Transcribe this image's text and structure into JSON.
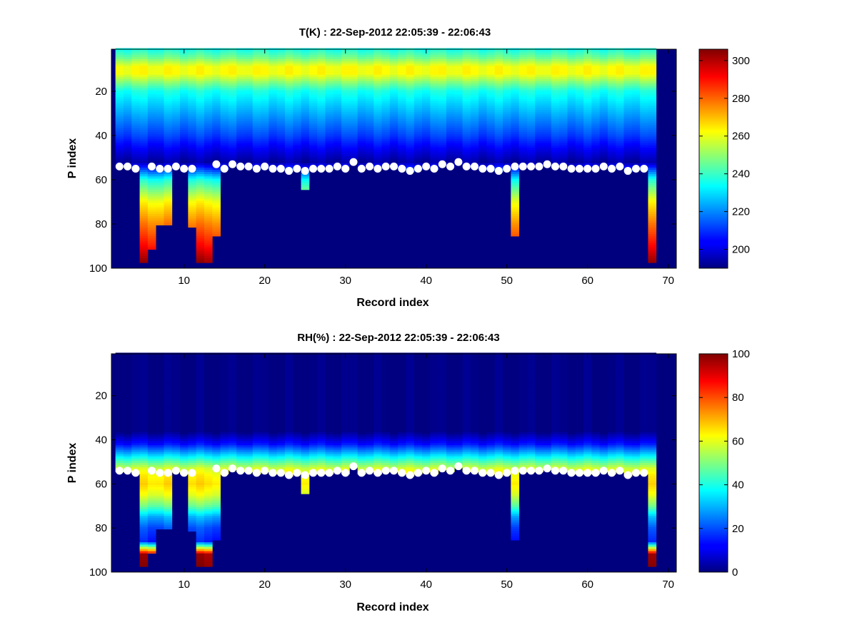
{
  "chart_data": [
    {
      "type": "heatmap",
      "title": "T(K) : 22-Sep-2012 22:05:39 - 22:06:43",
      "xlabel": "Record index",
      "ylabel": "P index",
      "xlim": [
        1,
        71
      ],
      "ylim": [
        1,
        100
      ],
      "y_reversed": true,
      "xticks": [
        10,
        20,
        30,
        40,
        50,
        60,
        70
      ],
      "yticks": [
        20,
        40,
        60,
        80,
        100
      ],
      "colorbar": {
        "min": 190,
        "max": 306,
        "ticks": [
          200,
          220,
          240,
          260,
          280,
          300
        ],
        "colormap": "jet"
      },
      "fill_color": "#00007f",
      "n_records": 67,
      "n_levels": 100,
      "profile": {
        "levels": [
          1,
          5,
          9,
          12,
          20,
          30,
          40,
          48,
          52,
          60,
          70,
          80,
          90,
          97
        ],
        "values": [
          236,
          247,
          262,
          262,
          236,
          224,
          212,
          200,
          194,
          236,
          262,
          277,
          290,
          302
        ]
      },
      "records": [
        {
          "x": 2,
          "bottom": 54
        },
        {
          "x": 3,
          "bottom": 54
        },
        {
          "x": 4,
          "bottom": 55
        },
        {
          "x": 5,
          "bottom": 97
        },
        {
          "x": 6,
          "bottom": 91
        },
        {
          "x": 7,
          "bottom": 80
        },
        {
          "x": 8,
          "bottom": 80
        },
        {
          "x": 9,
          "bottom": 54
        },
        {
          "x": 10,
          "bottom": 55
        },
        {
          "x": 11,
          "bottom": 81
        },
        {
          "x": 12,
          "bottom": 97
        },
        {
          "x": 13,
          "bottom": 97
        },
        {
          "x": 14,
          "bottom": 85
        },
        {
          "x": 15,
          "bottom": 55
        },
        {
          "x": 16,
          "bottom": 53
        },
        {
          "x": 17,
          "bottom": 54
        },
        {
          "x": 18,
          "bottom": 54
        },
        {
          "x": 19,
          "bottom": 55
        },
        {
          "x": 20,
          "bottom": 54
        },
        {
          "x": 21,
          "bottom": 55
        },
        {
          "x": 22,
          "bottom": 55
        },
        {
          "x": 23,
          "bottom": 56
        },
        {
          "x": 24,
          "bottom": 55
        },
        {
          "x": 25,
          "bottom": 64
        },
        {
          "x": 26,
          "bottom": 55
        },
        {
          "x": 27,
          "bottom": 55
        },
        {
          "x": 28,
          "bottom": 55
        },
        {
          "x": 29,
          "bottom": 54
        },
        {
          "x": 30,
          "bottom": 55
        },
        {
          "x": 31,
          "bottom": 52
        },
        {
          "x": 32,
          "bottom": 55
        },
        {
          "x": 33,
          "bottom": 54
        },
        {
          "x": 34,
          "bottom": 55
        },
        {
          "x": 35,
          "bottom": 54
        },
        {
          "x": 36,
          "bottom": 54
        },
        {
          "x": 37,
          "bottom": 55
        },
        {
          "x": 38,
          "bottom": 56
        },
        {
          "x": 39,
          "bottom": 55
        },
        {
          "x": 40,
          "bottom": 54
        },
        {
          "x": 41,
          "bottom": 55
        },
        {
          "x": 42,
          "bottom": 53
        },
        {
          "x": 43,
          "bottom": 54
        },
        {
          "x": 44,
          "bottom": 52
        },
        {
          "x": 45,
          "bottom": 54
        },
        {
          "x": 46,
          "bottom": 54
        },
        {
          "x": 47,
          "bottom": 55
        },
        {
          "x": 48,
          "bottom": 55
        },
        {
          "x": 49,
          "bottom": 56
        },
        {
          "x": 50,
          "bottom": 55
        },
        {
          "x": 51,
          "bottom": 85
        },
        {
          "x": 52,
          "bottom": 54
        },
        {
          "x": 53,
          "bottom": 54
        },
        {
          "x": 54,
          "bottom": 54
        },
        {
          "x": 55,
          "bottom": 53
        },
        {
          "x": 56,
          "bottom": 54
        },
        {
          "x": 57,
          "bottom": 54
        },
        {
          "x": 58,
          "bottom": 55
        },
        {
          "x": 59,
          "bottom": 55
        },
        {
          "x": 60,
          "bottom": 55
        },
        {
          "x": 61,
          "bottom": 55
        },
        {
          "x": 62,
          "bottom": 54
        },
        {
          "x": 63,
          "bottom": 55
        },
        {
          "x": 64,
          "bottom": 54
        },
        {
          "x": 65,
          "bottom": 56
        },
        {
          "x": 66,
          "bottom": 55
        },
        {
          "x": 67,
          "bottom": 55
        },
        {
          "x": 68,
          "bottom": 97
        }
      ],
      "markers": [
        {
          "x": 2,
          "y": 54
        },
        {
          "x": 3,
          "y": 54
        },
        {
          "x": 4,
          "y": 55
        },
        {
          "x": 6,
          "y": 54
        },
        {
          "x": 7,
          "y": 55
        },
        {
          "x": 8,
          "y": 55
        },
        {
          "x": 9,
          "y": 54
        },
        {
          "x": 10,
          "y": 55
        },
        {
          "x": 11,
          "y": 55
        },
        {
          "x": 14,
          "y": 53
        },
        {
          "x": 15,
          "y": 55
        },
        {
          "x": 16,
          "y": 53
        },
        {
          "x": 17,
          "y": 54
        },
        {
          "x": 18,
          "y": 54
        },
        {
          "x": 19,
          "y": 55
        },
        {
          "x": 20,
          "y": 54
        },
        {
          "x": 21,
          "y": 55
        },
        {
          "x": 22,
          "y": 55
        },
        {
          "x": 23,
          "y": 56
        },
        {
          "x": 24,
          "y": 55
        },
        {
          "x": 25,
          "y": 56
        },
        {
          "x": 26,
          "y": 55
        },
        {
          "x": 27,
          "y": 55
        },
        {
          "x": 28,
          "y": 55
        },
        {
          "x": 29,
          "y": 54
        },
        {
          "x": 30,
          "y": 55
        },
        {
          "x": 31,
          "y": 52
        },
        {
          "x": 32,
          "y": 55
        },
        {
          "x": 33,
          "y": 54
        },
        {
          "x": 34,
          "y": 55
        },
        {
          "x": 35,
          "y": 54
        },
        {
          "x": 36,
          "y": 54
        },
        {
          "x": 37,
          "y": 55
        },
        {
          "x": 38,
          "y": 56
        },
        {
          "x": 39,
          "y": 55
        },
        {
          "x": 40,
          "y": 54
        },
        {
          "x": 41,
          "y": 55
        },
        {
          "x": 42,
          "y": 53
        },
        {
          "x": 43,
          "y": 54
        },
        {
          "x": 44,
          "y": 52
        },
        {
          "x": 45,
          "y": 54
        },
        {
          "x": 46,
          "y": 54
        },
        {
          "x": 47,
          "y": 55
        },
        {
          "x": 48,
          "y": 55
        },
        {
          "x": 49,
          "y": 56
        },
        {
          "x": 50,
          "y": 55
        },
        {
          "x": 51,
          "y": 54
        },
        {
          "x": 52,
          "y": 54
        },
        {
          "x": 53,
          "y": 54
        },
        {
          "x": 54,
          "y": 54
        },
        {
          "x": 55,
          "y": 53
        },
        {
          "x": 56,
          "y": 54
        },
        {
          "x": 57,
          "y": 54
        },
        {
          "x": 58,
          "y": 55
        },
        {
          "x": 59,
          "y": 55
        },
        {
          "x": 60,
          "y": 55
        },
        {
          "x": 61,
          "y": 55
        },
        {
          "x": 62,
          "y": 54
        },
        {
          "x": 63,
          "y": 55
        },
        {
          "x": 64,
          "y": 54
        },
        {
          "x": 65,
          "y": 56
        },
        {
          "x": 66,
          "y": 55
        },
        {
          "x": 67,
          "y": 55
        }
      ]
    },
    {
      "type": "heatmap",
      "title": "RH(%) : 22-Sep-2012 22:05:39 - 22:06:43",
      "xlabel": "Record index",
      "ylabel": "P index",
      "xlim": [
        1,
        71
      ],
      "ylim": [
        1,
        100
      ],
      "y_reversed": true,
      "xticks": [
        10,
        20,
        30,
        40,
        50,
        60,
        70
      ],
      "yticks": [
        20,
        40,
        60,
        80,
        100
      ],
      "colorbar": {
        "min": 0,
        "max": 100,
        "ticks": [
          0,
          20,
          40,
          60,
          80,
          100
        ],
        "colormap": "jet"
      },
      "fill_color": "#00007f",
      "n_records": 67,
      "n_levels": 100,
      "profile": {
        "levels": [
          1,
          36,
          42,
          46,
          50,
          53,
          56,
          60,
          65,
          70,
          75,
          80,
          86,
          92,
          97
        ],
        "values": [
          0,
          0,
          14,
          30,
          46,
          58,
          63,
          66,
          60,
          48,
          30,
          20,
          15,
          96,
          98
        ]
      },
      "records": [
        {
          "x": 2,
          "bottom": 54
        },
        {
          "x": 3,
          "bottom": 54
        },
        {
          "x": 4,
          "bottom": 55
        },
        {
          "x": 5,
          "bottom": 97
        },
        {
          "x": 6,
          "bottom": 91
        },
        {
          "x": 7,
          "bottom": 80
        },
        {
          "x": 8,
          "bottom": 80
        },
        {
          "x": 9,
          "bottom": 54
        },
        {
          "x": 10,
          "bottom": 55
        },
        {
          "x": 11,
          "bottom": 81
        },
        {
          "x": 12,
          "bottom": 97
        },
        {
          "x": 13,
          "bottom": 97
        },
        {
          "x": 14,
          "bottom": 85
        },
        {
          "x": 15,
          "bottom": 55
        },
        {
          "x": 16,
          "bottom": 53
        },
        {
          "x": 17,
          "bottom": 54
        },
        {
          "x": 18,
          "bottom": 54
        },
        {
          "x": 19,
          "bottom": 55
        },
        {
          "x": 20,
          "bottom": 54
        },
        {
          "x": 21,
          "bottom": 55
        },
        {
          "x": 22,
          "bottom": 55
        },
        {
          "x": 23,
          "bottom": 56
        },
        {
          "x": 24,
          "bottom": 55
        },
        {
          "x": 25,
          "bottom": 64
        },
        {
          "x": 26,
          "bottom": 55
        },
        {
          "x": 27,
          "bottom": 55
        },
        {
          "x": 28,
          "bottom": 55
        },
        {
          "x": 29,
          "bottom": 54
        },
        {
          "x": 30,
          "bottom": 55
        },
        {
          "x": 31,
          "bottom": 52
        },
        {
          "x": 32,
          "bottom": 55
        },
        {
          "x": 33,
          "bottom": 54
        },
        {
          "x": 34,
          "bottom": 55
        },
        {
          "x": 35,
          "bottom": 54
        },
        {
          "x": 36,
          "bottom": 54
        },
        {
          "x": 37,
          "bottom": 55
        },
        {
          "x": 38,
          "bottom": 56
        },
        {
          "x": 39,
          "bottom": 55
        },
        {
          "x": 40,
          "bottom": 54
        },
        {
          "x": 41,
          "bottom": 55
        },
        {
          "x": 42,
          "bottom": 53
        },
        {
          "x": 43,
          "bottom": 54
        },
        {
          "x": 44,
          "bottom": 52
        },
        {
          "x": 45,
          "bottom": 54
        },
        {
          "x": 46,
          "bottom": 54
        },
        {
          "x": 47,
          "bottom": 55
        },
        {
          "x": 48,
          "bottom": 55
        },
        {
          "x": 49,
          "bottom": 56
        },
        {
          "x": 50,
          "bottom": 55
        },
        {
          "x": 51,
          "bottom": 85
        },
        {
          "x": 52,
          "bottom": 54
        },
        {
          "x": 53,
          "bottom": 54
        },
        {
          "x": 54,
          "bottom": 54
        },
        {
          "x": 55,
          "bottom": 53
        },
        {
          "x": 56,
          "bottom": 54
        },
        {
          "x": 57,
          "bottom": 54
        },
        {
          "x": 58,
          "bottom": 55
        },
        {
          "x": 59,
          "bottom": 55
        },
        {
          "x": 60,
          "bottom": 55
        },
        {
          "x": 61,
          "bottom": 55
        },
        {
          "x": 62,
          "bottom": 54
        },
        {
          "x": 63,
          "bottom": 55
        },
        {
          "x": 64,
          "bottom": 54
        },
        {
          "x": 65,
          "bottom": 56
        },
        {
          "x": 66,
          "bottom": 55
        },
        {
          "x": 67,
          "bottom": 55
        },
        {
          "x": 68,
          "bottom": 97
        }
      ],
      "markers": [
        {
          "x": 2,
          "y": 54
        },
        {
          "x": 3,
          "y": 54
        },
        {
          "x": 4,
          "y": 55
        },
        {
          "x": 6,
          "y": 54
        },
        {
          "x": 7,
          "y": 55
        },
        {
          "x": 8,
          "y": 55
        },
        {
          "x": 9,
          "y": 54
        },
        {
          "x": 10,
          "y": 55
        },
        {
          "x": 11,
          "y": 55
        },
        {
          "x": 14,
          "y": 53
        },
        {
          "x": 15,
          "y": 55
        },
        {
          "x": 16,
          "y": 53
        },
        {
          "x": 17,
          "y": 54
        },
        {
          "x": 18,
          "y": 54
        },
        {
          "x": 19,
          "y": 55
        },
        {
          "x": 20,
          "y": 54
        },
        {
          "x": 21,
          "y": 55
        },
        {
          "x": 22,
          "y": 55
        },
        {
          "x": 23,
          "y": 56
        },
        {
          "x": 24,
          "y": 55
        },
        {
          "x": 25,
          "y": 56
        },
        {
          "x": 26,
          "y": 55
        },
        {
          "x": 27,
          "y": 55
        },
        {
          "x": 28,
          "y": 55
        },
        {
          "x": 29,
          "y": 54
        },
        {
          "x": 30,
          "y": 55
        },
        {
          "x": 31,
          "y": 52
        },
        {
          "x": 32,
          "y": 55
        },
        {
          "x": 33,
          "y": 54
        },
        {
          "x": 34,
          "y": 55
        },
        {
          "x": 35,
          "y": 54
        },
        {
          "x": 36,
          "y": 54
        },
        {
          "x": 37,
          "y": 55
        },
        {
          "x": 38,
          "y": 56
        },
        {
          "x": 39,
          "y": 55
        },
        {
          "x": 40,
          "y": 54
        },
        {
          "x": 41,
          "y": 55
        },
        {
          "x": 42,
          "y": 53
        },
        {
          "x": 43,
          "y": 54
        },
        {
          "x": 44,
          "y": 52
        },
        {
          "x": 45,
          "y": 54
        },
        {
          "x": 46,
          "y": 54
        },
        {
          "x": 47,
          "y": 55
        },
        {
          "x": 48,
          "y": 55
        },
        {
          "x": 49,
          "y": 56
        },
        {
          "x": 50,
          "y": 55
        },
        {
          "x": 51,
          "y": 54
        },
        {
          "x": 52,
          "y": 54
        },
        {
          "x": 53,
          "y": 54
        },
        {
          "x": 54,
          "y": 54
        },
        {
          "x": 55,
          "y": 53
        },
        {
          "x": 56,
          "y": 54
        },
        {
          "x": 57,
          "y": 54
        },
        {
          "x": 58,
          "y": 55
        },
        {
          "x": 59,
          "y": 55
        },
        {
          "x": 60,
          "y": 55
        },
        {
          "x": 61,
          "y": 55
        },
        {
          "x": 62,
          "y": 54
        },
        {
          "x": 63,
          "y": 55
        },
        {
          "x": 64,
          "y": 54
        },
        {
          "x": 65,
          "y": 56
        },
        {
          "x": 66,
          "y": 55
        },
        {
          "x": 67,
          "y": 55
        }
      ]
    }
  ]
}
